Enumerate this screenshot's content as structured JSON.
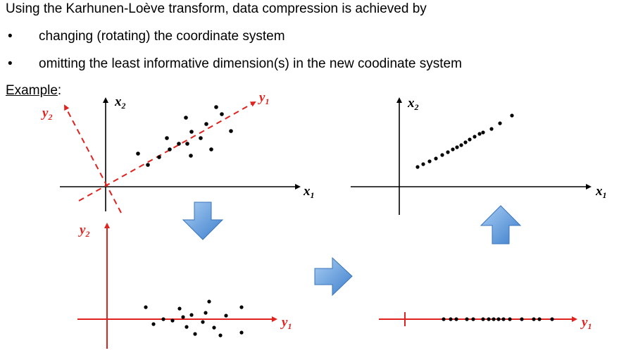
{
  "intro": "Using the Karhunen-Loève transform, data compression is achieved by",
  "bullets": [
    "changing (rotating) the coordinate system",
    "omitting the least informative dimension(s)  in the new coodinate system"
  ],
  "bullet_symbol": "•",
  "example_label": "Example",
  "example_colon": ":",
  "axis_labels": {
    "x": "x",
    "x_sub1": "1",
    "x2": "x",
    "x_sub2": "2",
    "y": "y",
    "y_sub1": "1",
    "y_sub2": "2"
  },
  "colors": {
    "axis": "#000000",
    "red": "#e0231f",
    "arrow_fill": "#4f8fd6",
    "arrow_light": "#9cc4ee"
  },
  "icons": [
    "arrow-down-icon",
    "arrow-right-icon",
    "arrow-up-icon"
  ]
}
